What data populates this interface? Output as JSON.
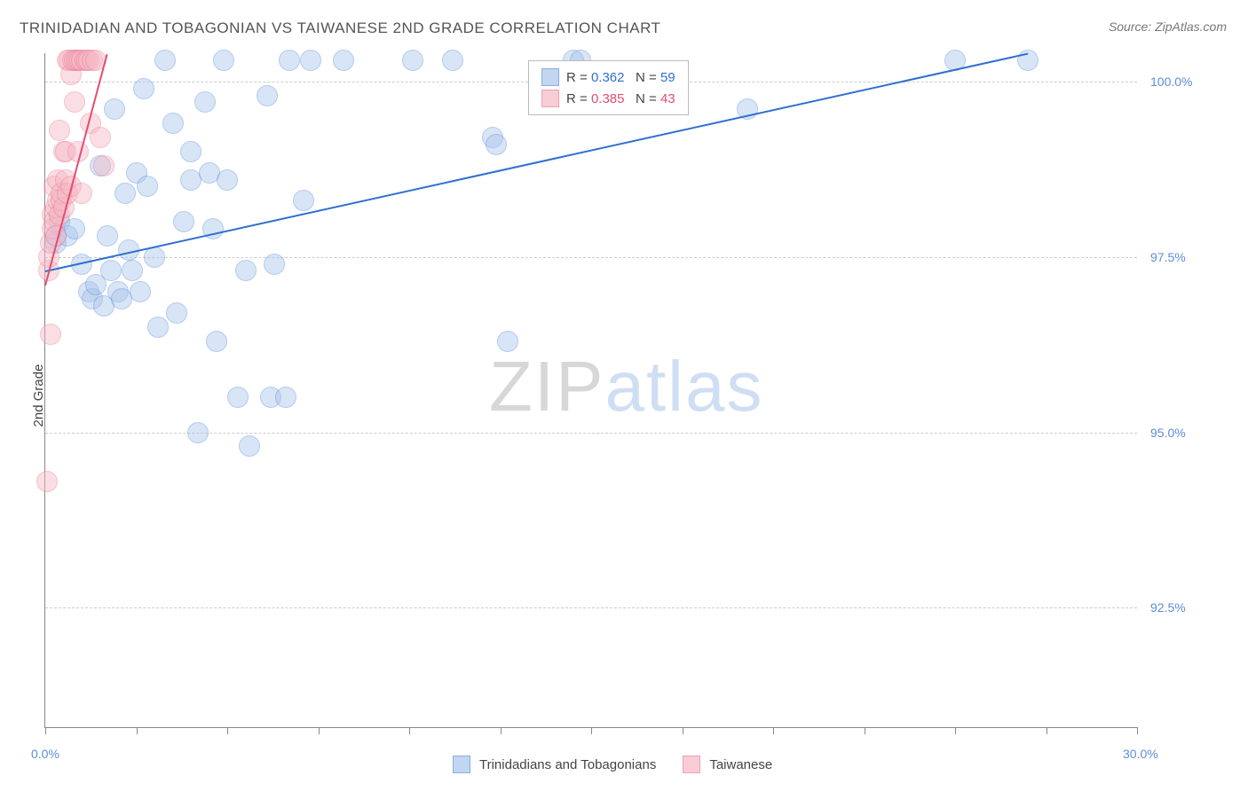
{
  "title": "TRINIDADIAN AND TOBAGONIAN VS TAIWANESE 2ND GRADE CORRELATION CHART",
  "source_label": "Source: ",
  "source_value": "ZipAtlas.com",
  "ylabel": "2nd Grade",
  "watermark_a": "ZIP",
  "watermark_b": "atlas",
  "chart": {
    "type": "scatter",
    "background_color": "#ffffff",
    "grid_color": "#cccccc",
    "axis_color": "#888888",
    "tick_label_color": "#5b8dd6",
    "tick_fontsize": 14,
    "xlim": [
      0.0,
      30.0
    ],
    "ylim": [
      90.8,
      100.4
    ],
    "xticks": [
      0.0,
      2.5,
      5.0,
      7.5,
      10.0,
      12.5,
      15.0,
      17.5,
      20.0,
      22.5,
      25.0,
      27.5,
      30.0
    ],
    "xtick_labels": {
      "0.0": "0.0%",
      "30.0": "30.0%"
    },
    "yticks": [
      92.5,
      95.0,
      97.5,
      100.0
    ],
    "ytick_labels": [
      "92.5%",
      "95.0%",
      "97.5%",
      "100.0%"
    ],
    "marker_radius": 11,
    "marker_opacity": 0.45,
    "marker_border_width": 1.5,
    "series": [
      {
        "name": "Trinidadians and Tobagonians",
        "fill": "#a9c6ec",
        "stroke": "#5b8dd6",
        "trend": {
          "x1": 0.0,
          "y1": 97.3,
          "x2": 27.0,
          "y2": 100.4,
          "color": "#2f6fd0",
          "width": 2
        },
        "R": "0.362",
        "N": "59",
        "points": [
          [
            0.3,
            97.8
          ],
          [
            0.3,
            97.7
          ],
          [
            0.4,
            98.0
          ],
          [
            0.6,
            97.8
          ],
          [
            0.8,
            97.9
          ],
          [
            1.0,
            97.4
          ],
          [
            1.2,
            97.0
          ],
          [
            1.3,
            96.9
          ],
          [
            1.4,
            97.1
          ],
          [
            1.5,
            98.8
          ],
          [
            1.6,
            96.8
          ],
          [
            1.7,
            97.8
          ],
          [
            1.8,
            97.3
          ],
          [
            1.9,
            99.6
          ],
          [
            2.0,
            97.0
          ],
          [
            2.1,
            96.9
          ],
          [
            2.2,
            98.4
          ],
          [
            2.3,
            97.6
          ],
          [
            2.4,
            97.3
          ],
          [
            2.5,
            98.7
          ],
          [
            2.6,
            97.0
          ],
          [
            2.7,
            99.9
          ],
          [
            2.8,
            98.5
          ],
          [
            3.0,
            97.5
          ],
          [
            3.1,
            96.5
          ],
          [
            3.3,
            100.3
          ],
          [
            3.5,
            99.4
          ],
          [
            3.6,
            96.7
          ],
          [
            3.8,
            98.0
          ],
          [
            4.0,
            98.6
          ],
          [
            4.0,
            99.0
          ],
          [
            4.2,
            95.0
          ],
          [
            4.4,
            99.7
          ],
          [
            4.5,
            98.7
          ],
          [
            4.6,
            97.9
          ],
          [
            4.7,
            96.3
          ],
          [
            4.9,
            100.3
          ],
          [
            5.0,
            98.6
          ],
          [
            5.3,
            95.5
          ],
          [
            5.5,
            97.3
          ],
          [
            5.6,
            94.8
          ],
          [
            6.1,
            99.8
          ],
          [
            6.2,
            95.5
          ],
          [
            6.3,
            97.4
          ],
          [
            6.6,
            95.5
          ],
          [
            6.7,
            100.3
          ],
          [
            7.1,
            98.3
          ],
          [
            7.3,
            100.3
          ],
          [
            8.2,
            100.3
          ],
          [
            10.1,
            100.3
          ],
          [
            11.2,
            100.3
          ],
          [
            12.3,
            99.2
          ],
          [
            12.4,
            99.1
          ],
          [
            12.7,
            96.3
          ],
          [
            14.5,
            100.3
          ],
          [
            14.7,
            100.3
          ],
          [
            19.3,
            99.6
          ],
          [
            25.0,
            100.3
          ],
          [
            27.0,
            100.3
          ]
        ]
      },
      {
        "name": "Taiwanese",
        "fill": "#f6b8c4",
        "stroke": "#e77a95",
        "trend": {
          "x1": 0.0,
          "y1": 97.1,
          "x2": 1.7,
          "y2": 100.4,
          "color": "#e34d72",
          "width": 2
        },
        "R": "0.385",
        "N": "43",
        "points": [
          [
            0.05,
            94.3
          ],
          [
            0.1,
            97.3
          ],
          [
            0.1,
            97.5
          ],
          [
            0.15,
            96.4
          ],
          [
            0.15,
            97.7
          ],
          [
            0.2,
            98.1
          ],
          [
            0.2,
            97.9
          ],
          [
            0.25,
            98.5
          ],
          [
            0.25,
            98.0
          ],
          [
            0.3,
            97.8
          ],
          [
            0.3,
            98.2
          ],
          [
            0.35,
            98.3
          ],
          [
            0.35,
            98.6
          ],
          [
            0.4,
            98.1
          ],
          [
            0.4,
            99.3
          ],
          [
            0.45,
            98.3
          ],
          [
            0.45,
            98.4
          ],
          [
            0.5,
            99.0
          ],
          [
            0.5,
            98.2
          ],
          [
            0.55,
            99.0
          ],
          [
            0.55,
            98.6
          ],
          [
            0.6,
            98.4
          ],
          [
            0.6,
            100.3
          ],
          [
            0.65,
            100.3
          ],
          [
            0.7,
            100.1
          ],
          [
            0.7,
            98.5
          ],
          [
            0.75,
            100.3
          ],
          [
            0.8,
            100.3
          ],
          [
            0.8,
            99.7
          ],
          [
            0.85,
            100.3
          ],
          [
            0.9,
            100.3
          ],
          [
            0.9,
            99.0
          ],
          [
            0.95,
            100.3
          ],
          [
            1.0,
            100.3
          ],
          [
            1.0,
            98.4
          ],
          [
            1.1,
            100.3
          ],
          [
            1.15,
            100.3
          ],
          [
            1.2,
            100.3
          ],
          [
            1.25,
            99.4
          ],
          [
            1.3,
            100.3
          ],
          [
            1.4,
            100.3
          ],
          [
            1.5,
            99.2
          ],
          [
            1.6,
            98.8
          ]
        ]
      }
    ]
  },
  "legend_top": {
    "R_label": "R = ",
    "N_label": "N = "
  },
  "legend_bottom": {
    "items": [
      "Trinidadians and Tobagonians",
      "Taiwanese"
    ]
  }
}
